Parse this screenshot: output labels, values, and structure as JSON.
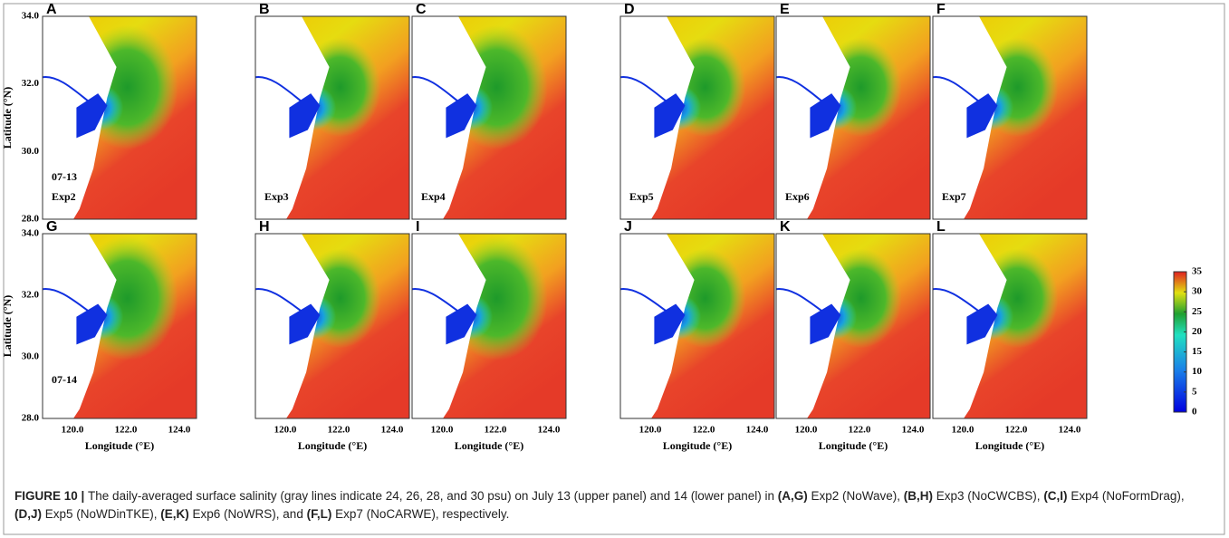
{
  "panels": [
    {
      "letter": "A",
      "exp": "Exp2",
      "date": "07-13"
    },
    {
      "letter": "B",
      "exp": "Exp3"
    },
    {
      "letter": "C",
      "exp": "Exp4"
    },
    {
      "letter": "D",
      "exp": "Exp5"
    },
    {
      "letter": "E",
      "exp": "Exp6"
    },
    {
      "letter": "F",
      "exp": "Exp7"
    },
    {
      "letter": "G",
      "date": "07-14"
    },
    {
      "letter": "H"
    },
    {
      "letter": "I"
    },
    {
      "letter": "J"
    },
    {
      "letter": "K"
    },
    {
      "letter": "L"
    }
  ],
  "x_axis": {
    "label": "Longitude (°E)",
    "ticks": [
      "120.0",
      "122.0",
      "124.0"
    ]
  },
  "y_axis": {
    "label": "Latitude (°N)",
    "ticks": [
      "34.0",
      "32.0",
      "30.0",
      "28.0"
    ]
  },
  "colorbar": {
    "range": [
      0,
      35
    ],
    "ticks": [
      0,
      5,
      10,
      15,
      20,
      25,
      30,
      35
    ]
  },
  "caption": [
    {
      "text": "FIGURE 10 | ",
      "bold": true
    },
    {
      "text": "The daily-averaged surface salinity (gray lines indicate 24, 26, 28, and 30 psu) on July 13 (upper panel) and 14 (lower panel) in "
    },
    {
      "text": "(A,G)",
      "bold": true
    },
    {
      "text": " Exp2 (NoWave), "
    },
    {
      "text": "(B,H)",
      "bold": true
    },
    {
      "text": " Exp3 (NoCWCBS), "
    },
    {
      "text": "(C,I)",
      "bold": true
    },
    {
      "text": " Exp4 (NoFormDrag), "
    },
    {
      "text": "(D,J)",
      "bold": true
    },
    {
      "text": " Exp5 (NoWDinTKE), "
    },
    {
      "text": "(E,K)",
      "bold": true
    },
    {
      "text": " Exp6 (NoWRS), and "
    },
    {
      "text": "(F,L)",
      "bold": true
    },
    {
      "text": " Exp7 (NoCARWE), respectively."
    }
  ]
}
